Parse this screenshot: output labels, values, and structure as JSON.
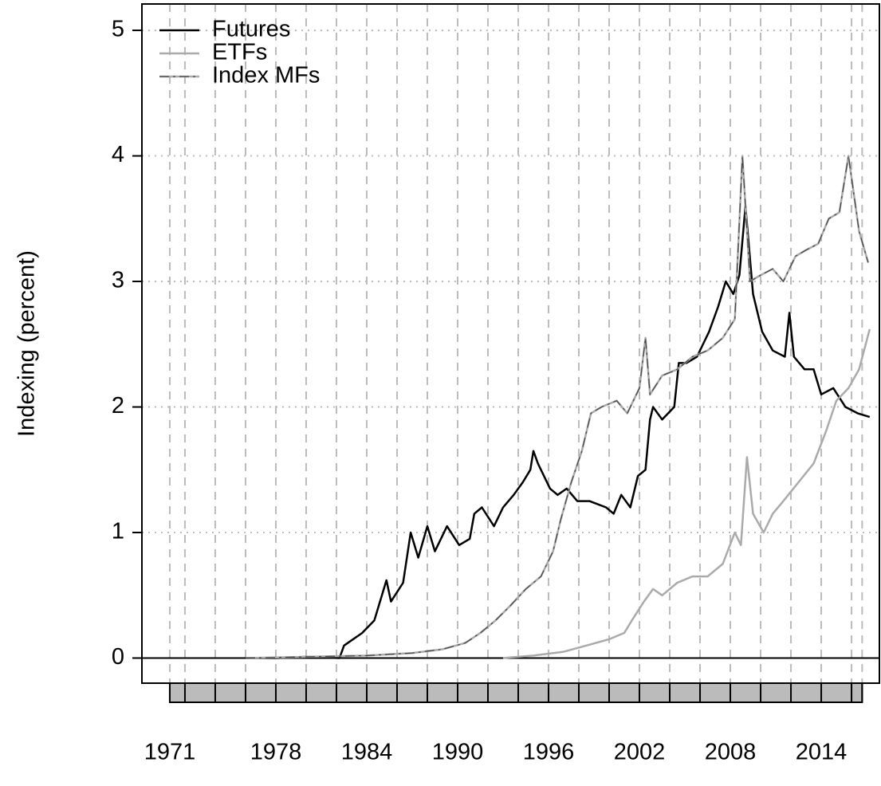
{
  "chart_data": {
    "type": "line",
    "y_label": "Indexing (percent)",
    "xlim": [
      1969.16,
      2017.84
    ],
    "ylim": [
      -0.2,
      5.21
    ],
    "xticks": [
      1971,
      1978,
      1984,
      1990,
      1996,
      2002,
      2008,
      2014
    ],
    "yticks": [
      0,
      1,
      2,
      3,
      4,
      5
    ],
    "xgrid": [
      1971,
      1972,
      1974,
      1976,
      1978,
      1980,
      1982,
      1984,
      1986,
      1988,
      1990,
      1992,
      1994,
      1996,
      1998,
      2000,
      2002,
      2004,
      2006,
      2008,
      2010,
      2012,
      2014,
      2016,
      2016.7
    ],
    "grid": true,
    "legend": "top-left",
    "series": [
      {
        "name": "Futures",
        "color": "#000000",
        "style": "solid",
        "x": [
          1976,
          1978,
          1980,
          1982.2,
          1982.5,
          1983.7,
          1984.5,
          1985.3,
          1985.6,
          1986.4,
          1986.9,
          1987.4,
          1988,
          1988.5,
          1989.3,
          1990.1,
          1990.8,
          1991.1,
          1991.6,
          1992.4,
          1993,
          1993.7,
          1994.3,
          1994.8,
          1995,
          1995.3,
          1996.1,
          1996.6,
          1997.2,
          1997.9,
          1998.7,
          1999.8,
          2000.3,
          2000.8,
          2001.4,
          2001.9,
          2002.4,
          2002.7,
          2002.9,
          2003.5,
          2004.3,
          2004.6,
          2005.1,
          2005.8,
          2006.6,
          2007.2,
          2007.7,
          2008.2,
          2008.6,
          2009,
          2009.5,
          2010.1,
          2010.8,
          2011.6,
          2011.9,
          2012.2,
          2012.9,
          2013.5,
          2014,
          2014.8,
          2015.6,
          2016.4,
          2017.2
        ],
        "values": [
          0,
          0,
          0.01,
          0,
          0.1,
          0.2,
          0.3,
          0.62,
          0.45,
          0.6,
          1.0,
          0.8,
          1.05,
          0.85,
          1.05,
          0.9,
          0.95,
          1.15,
          1.2,
          1.05,
          1.2,
          1.3,
          1.4,
          1.5,
          1.65,
          1.55,
          1.35,
          1.3,
          1.35,
          1.25,
          1.25,
          1.2,
          1.15,
          1.3,
          1.2,
          1.45,
          1.5,
          1.9,
          2.0,
          1.9,
          2.0,
          2.35,
          2.35,
          2.4,
          2.6,
          2.8,
          3.0,
          2.9,
          3.05,
          3.6,
          2.9,
          2.6,
          2.45,
          2.4,
          2.75,
          2.4,
          2.3,
          2.3,
          2.1,
          2.15,
          2.0,
          1.95,
          1.92
        ]
      },
      {
        "name": "ETFs",
        "color": "#aaaaaa",
        "style": "solid",
        "x": [
          1993,
          1995,
          1997,
          1998.5,
          2000,
          2001,
          2001.5,
          2002.3,
          2002.9,
          2003.5,
          2004.5,
          2005.5,
          2006.5,
          2007.5,
          2008.3,
          2008.7,
          2009.1,
          2009.5,
          2010.2,
          2010.8,
          2011.5,
          2012.5,
          2013.5,
          2014.3,
          2015,
          2015.8,
          2016.5,
          2017.2
        ],
        "values": [
          0,
          0.02,
          0.05,
          0.1,
          0.15,
          0.2,
          0.3,
          0.45,
          0.55,
          0.5,
          0.6,
          0.65,
          0.65,
          0.75,
          1.0,
          0.9,
          1.6,
          1.15,
          1.0,
          1.15,
          1.25,
          1.4,
          1.55,
          1.8,
          2.05,
          2.15,
          2.3,
          2.62
        ]
      },
      {
        "name": "Index MFs",
        "color": "#aaaaaa",
        "style": "dashdot",
        "x": [
          1976,
          1980,
          1984,
          1987,
          1989,
          1990.5,
          1991.5,
          1992.5,
          1993.5,
          1994.5,
          1995.5,
          1996.3,
          1996.8,
          1997.5,
          1998.2,
          1998.8,
          1999.5,
          2000.5,
          2001.2,
          2002,
          2002.4,
          2002.7,
          2003.5,
          2004.5,
          2005.5,
          2006.5,
          2007.5,
          2008.3,
          2008.8,
          2009.3,
          2010,
          2010.8,
          2011.5,
          2012.3,
          2013,
          2013.8,
          2014.5,
          2015.2,
          2015.8,
          2016.5,
          2017.1
        ],
        "values": [
          0,
          0.01,
          0.02,
          0.04,
          0.07,
          0.12,
          0.2,
          0.3,
          0.42,
          0.55,
          0.65,
          0.85,
          1.1,
          1.4,
          1.65,
          1.95,
          2.0,
          2.05,
          1.95,
          2.15,
          2.55,
          2.1,
          2.25,
          2.3,
          2.4,
          2.45,
          2.55,
          2.7,
          4.0,
          3.0,
          3.05,
          3.1,
          3.0,
          3.2,
          3.25,
          3.3,
          3.5,
          3.55,
          4.0,
          3.4,
          3.15
        ]
      }
    ]
  }
}
